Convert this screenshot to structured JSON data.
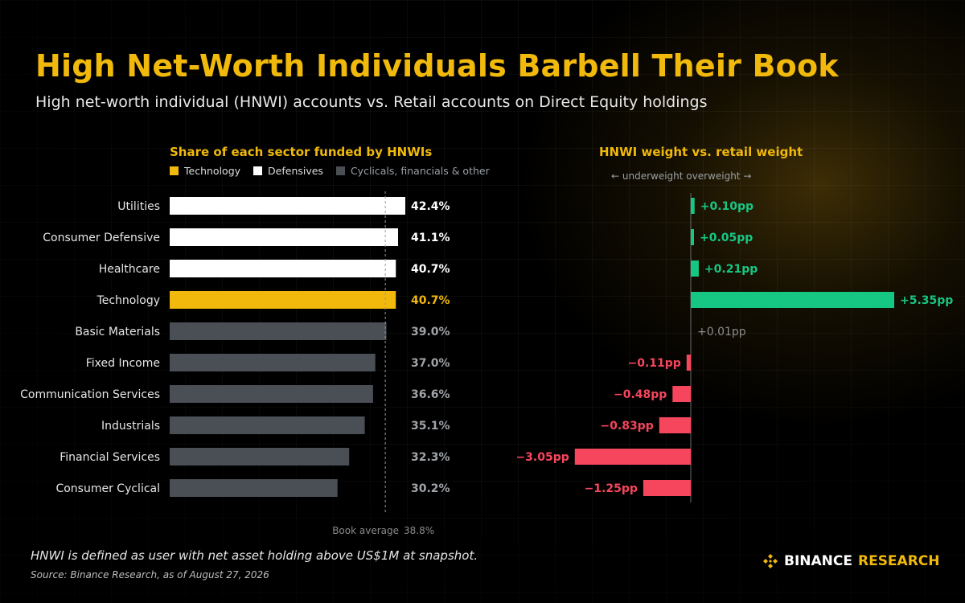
{
  "title": "High Net-Worth Individuals Barbell Their Book",
  "subtitle": "High net-worth individual (HNWI) accounts vs. Retail accounts on Direct Equity holdings",
  "colors": {
    "accent": "#F0B90B",
    "technology": "#F0B90B",
    "defensives": "#FFFFFF",
    "cyclicals": "#4A4F55",
    "positive": "#16C784",
    "negative": "#F6465D",
    "neutral": "#8C8C8C"
  },
  "legend": [
    {
      "label": "Technology",
      "group": "technology"
    },
    {
      "label": "Defensives",
      "group": "defensives"
    },
    {
      "label": "Cyclicals, financials & other",
      "group": "cyclicals"
    }
  ],
  "right_hint": "← underweight  overweight →",
  "footnote": "HNWI is defined as user with net asset holding above US$1M at snapshot.",
  "source": "Source: Binance Research, as of August 27, 2026",
  "brand": {
    "first": "BINANCE",
    "second": "RESEARCH",
    "logo_icon": "binance-diamond-icon"
  },
  "chart_data": [
    {
      "type": "bar",
      "orientation": "horizontal",
      "title": "Share of each sector funded by HNWIs",
      "categories": [
        "Utilities",
        "Consumer Defensive",
        "Healthcare",
        "Technology",
        "Basic Materials",
        "Fixed Income",
        "Communication Services",
        "Industrials",
        "Financial Services",
        "Consumer Cyclical"
      ],
      "values": [
        42.4,
        41.1,
        40.7,
        40.7,
        39.0,
        37.0,
        36.6,
        35.1,
        32.3,
        30.2
      ],
      "value_labels": [
        "42.4%",
        "41.1%",
        "40.7%",
        "40.7%",
        "39.0%",
        "37.0%",
        "36.6%",
        "35.1%",
        "32.3%",
        "30.2%"
      ],
      "groups": [
        "defensives",
        "defensives",
        "defensives",
        "technology",
        "cyclicals",
        "cyclicals",
        "cyclicals",
        "cyclicals",
        "cyclicals",
        "cyclicals"
      ],
      "reference_line": {
        "label": "Book average",
        "value": 38.8,
        "value_label": "38.8%"
      },
      "xlim": [
        0,
        42.4
      ]
    },
    {
      "type": "bar",
      "orientation": "horizontal",
      "title": "HNWI weight vs. retail weight",
      "categories": [
        "Utilities",
        "Consumer Defensive",
        "Healthcare",
        "Technology",
        "Basic Materials",
        "Fixed Income",
        "Communication Services",
        "Industrials",
        "Financial Services",
        "Consumer Cyclical"
      ],
      "values": [
        0.1,
        0.05,
        0.21,
        5.35,
        0.01,
        -0.11,
        -0.48,
        -0.83,
        -3.05,
        -1.25
      ],
      "value_labels": [
        "+0.10pp",
        "+0.05pp",
        "+0.21pp",
        "+5.35pp",
        "+0.01pp",
        "−0.11pp",
        "−0.48pp",
        "−0.83pp",
        "−3.05pp",
        "−1.25pp"
      ],
      "xlim": [
        -3.05,
        5.35
      ]
    }
  ]
}
